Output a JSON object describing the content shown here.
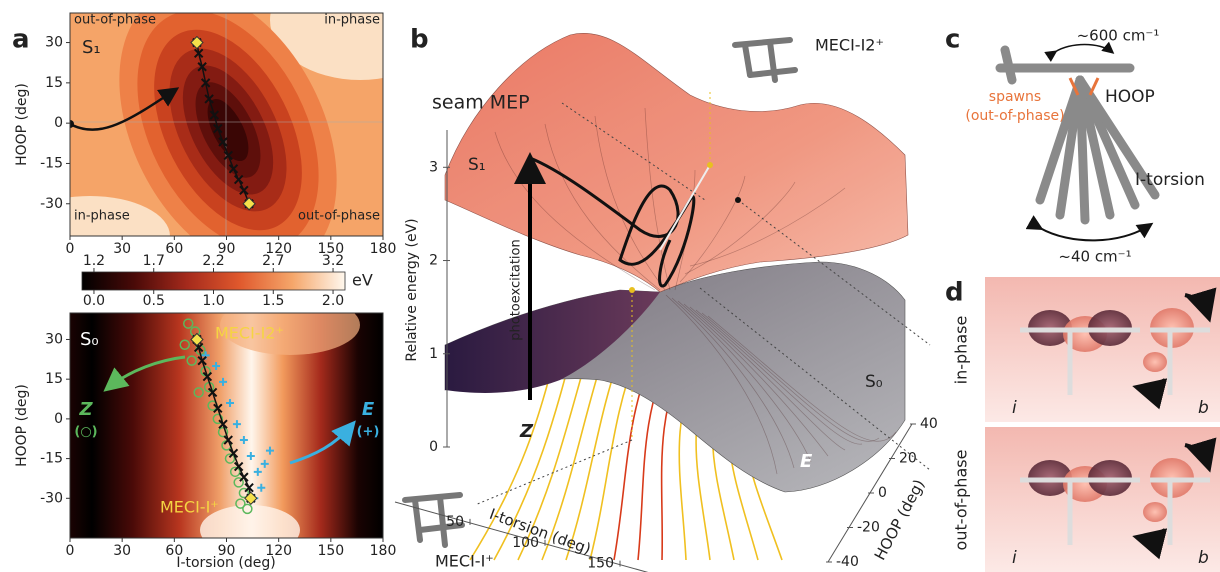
{
  "panel_a": {
    "label": "a",
    "top": {
      "state": "S₁",
      "corner_labels": [
        "out-of-phase",
        "in-phase",
        "in-phase",
        "out-of-phase"
      ],
      "ylabel": "HOOP (deg)",
      "xlim": [
        0,
        180
      ],
      "ylim": [
        -42,
        41
      ],
      "xticks": [
        0,
        30,
        60,
        90,
        120,
        150,
        180
      ],
      "yticks": [
        -30,
        -15,
        0,
        15,
        30
      ],
      "path": {
        "x": [
          73,
          74,
          76,
          78,
          80,
          83,
          85,
          88,
          91,
          94,
          97,
          100,
          103
        ],
        "y": [
          30,
          26,
          21,
          15,
          9,
          3,
          -2,
          -7,
          -12,
          -17,
          -21,
          -25,
          -30
        ]
      },
      "ends": {
        "x": [
          73,
          103
        ],
        "y": [
          30,
          -30
        ]
      }
    },
    "colorbar": {
      "unit": "eV",
      "s1_lim": [
        1.1,
        3.3
      ],
      "s1_ticks": [
        1.2,
        1.7,
        2.2,
        2.7,
        3.2
      ],
      "s0_lim": [
        -0.1,
        2.1
      ],
      "s0_ticks": [
        {
          "value": 0,
          "label": "0.0"
        },
        0.5,
        {
          "value": 1,
          "label": "1.0"
        },
        1.5,
        {
          "value": 2,
          "label": "2.0"
        }
      ]
    },
    "bottom": {
      "state": "S₀",
      "xlabel": "I-torsion (deg)",
      "ylabel": "HOOP (deg)",
      "xlim": [
        0,
        180
      ],
      "ylim": [
        -45,
        40
      ],
      "xticks": [
        0,
        30,
        60,
        90,
        120,
        150,
        180
      ],
      "yticks": [
        -30,
        -15,
        0,
        15,
        30
      ],
      "meci_i2": "MECI-I2⁺",
      "meci_i": "MECI-I⁺",
      "z_label": "Z",
      "z_marker": "(○)",
      "e_label": "E",
      "e_marker": "(+)",
      "path": {
        "x": [
          73,
          74,
          76,
          79,
          82,
          85,
          88,
          91,
          94,
          97,
          100,
          103,
          104
        ],
        "y": [
          30,
          27,
          22,
          16,
          10,
          4,
          -2,
          -8,
          -13,
          -18,
          -22,
          -26,
          -30
        ]
      },
      "ends": {
        "x": [
          73,
          104
        ],
        "y": [
          30,
          -30
        ]
      },
      "z_spawns": {
        "x": [
          68,
          72,
          66,
          75,
          70,
          78,
          80,
          74,
          82,
          85,
          88,
          90,
          92,
          95,
          97,
          100,
          98,
          102
        ],
        "y": [
          36,
          33,
          28,
          26,
          22,
          18,
          12,
          10,
          5,
          0,
          -5,
          -10,
          -15,
          -20,
          -24,
          -28,
          -32,
          -34
        ]
      },
      "e_spawns": {
        "x": [
          78,
          84,
          88,
          92,
          96,
          100,
          104,
          108,
          112,
          110,
          106,
          115
        ],
        "y": [
          24,
          20,
          14,
          6,
          -2,
          -8,
          -14,
          -20,
          -17,
          -26,
          -30,
          -12
        ]
      }
    }
  },
  "panel_b": {
    "label": "b",
    "zlabel": "Relative energy (eV)",
    "zlim": [
      0,
      3.4
    ],
    "zticks": [
      0,
      1,
      2,
      3
    ],
    "xlabel": "I-torsion (deg)",
    "xlim": [
      0,
      170
    ],
    "xticks": [
      50,
      100,
      150
    ],
    "ylabel": "HOOP (deg)",
    "ylim": [
      -40,
      40
    ],
    "yticks": [
      -40,
      -20,
      0,
      20,
      40
    ],
    "seam": "seam MEP",
    "s1": "S₁",
    "s0": "S₀",
    "z": "Z",
    "e": "E",
    "excitation": "photoexcitation",
    "meci_i2": "MECI-I2⁺",
    "meci_i": "MECI-I⁺"
  },
  "panel_c": {
    "label": "c",
    "freq_hoop": "~600 cm⁻¹",
    "hoop": "HOOP",
    "spawns": [
      "spawns",
      "(out-of-phase)"
    ],
    "torsion": "I-torsion",
    "freq_torsion": "~40 cm⁻¹"
  },
  "panel_d": {
    "label": "d",
    "rows": [
      {
        "label": "in-phase",
        "left": "i",
        "right": "b"
      },
      {
        "label": "out-of-phase",
        "left": "i",
        "right": "b"
      }
    ]
  }
}
